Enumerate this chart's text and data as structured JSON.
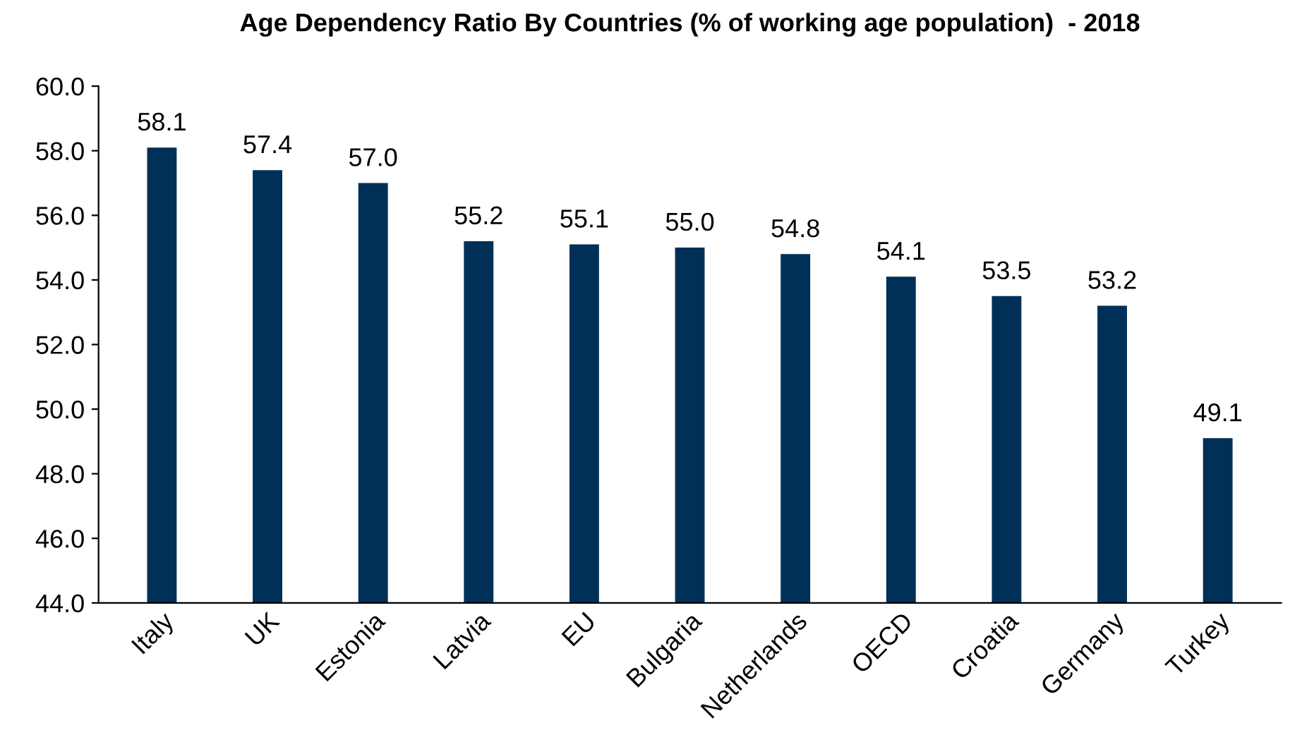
{
  "chart_data": {
    "type": "bar",
    "title": "Age Dependency Ratio By Countries (% of working age population)  - 2018",
    "categories": [
      "Italy",
      "UK",
      "Estonia",
      "Latvia",
      "EU",
      "Bulgaria",
      "Netherlands",
      "OECD",
      "Croatia",
      "Germany",
      "Turkey"
    ],
    "values": [
      58.1,
      57.4,
      57.0,
      55.2,
      55.1,
      55.0,
      54.8,
      54.1,
      53.5,
      53.2,
      49.1
    ],
    "value_labels": [
      "58.1",
      "57.4",
      "57.0",
      "55.2",
      "55.1",
      "55.0",
      "54.8",
      "54.1",
      "53.5",
      "53.2",
      "49.1"
    ],
    "color": "#003057",
    "ylim": [
      44,
      60
    ],
    "yticks": [
      {
        "value": 44,
        "label": "44.0"
      },
      {
        "value": 46,
        "label": "46.0"
      },
      {
        "value": 48,
        "label": "48.0"
      },
      {
        "value": 50,
        "label": "50.0"
      },
      {
        "value": 52,
        "label": "52.0"
      },
      {
        "value": 54,
        "label": "54.0"
      },
      {
        "value": 56,
        "label": "56.0"
      },
      {
        "value": 58,
        "label": "58.0"
      },
      {
        "value": 60,
        "label": "60.0"
      }
    ],
    "grid": false,
    "legend": false
  }
}
